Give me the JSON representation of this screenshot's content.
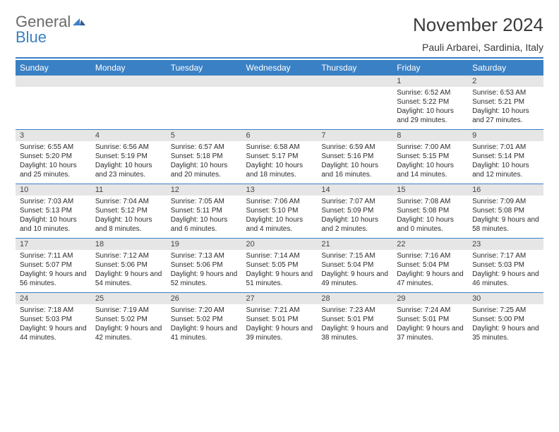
{
  "brand": {
    "part1": "General",
    "part2": "Blue"
  },
  "header": {
    "title": "November 2024",
    "location": "Pauli Arbarei, Sardinia, Italy"
  },
  "colors": {
    "accent": "#3a80c4",
    "header_bg": "#3a80c4",
    "header_text": "#ffffff",
    "daynum_bg": "#e6e6e6",
    "body_text": "#2b2b2b",
    "page_bg": "#ffffff"
  },
  "typography": {
    "title_fontsize": 26,
    "location_fontsize": 14,
    "header_cell_fontsize": 12,
    "daynum_fontsize": 11,
    "body_fontsize": 10
  },
  "weekdays": [
    "Sunday",
    "Monday",
    "Tuesday",
    "Wednesday",
    "Thursday",
    "Friday",
    "Saturday"
  ],
  "blanks_before": 5,
  "days": [
    {
      "n": 1,
      "sunrise": "6:52 AM",
      "sunset": "5:22 PM",
      "day_h": 10,
      "day_m": 29
    },
    {
      "n": 2,
      "sunrise": "6:53 AM",
      "sunset": "5:21 PM",
      "day_h": 10,
      "day_m": 27
    },
    {
      "n": 3,
      "sunrise": "6:55 AM",
      "sunset": "5:20 PM",
      "day_h": 10,
      "day_m": 25
    },
    {
      "n": 4,
      "sunrise": "6:56 AM",
      "sunset": "5:19 PM",
      "day_h": 10,
      "day_m": 23
    },
    {
      "n": 5,
      "sunrise": "6:57 AM",
      "sunset": "5:18 PM",
      "day_h": 10,
      "day_m": 20
    },
    {
      "n": 6,
      "sunrise": "6:58 AM",
      "sunset": "5:17 PM",
      "day_h": 10,
      "day_m": 18
    },
    {
      "n": 7,
      "sunrise": "6:59 AM",
      "sunset": "5:16 PM",
      "day_h": 10,
      "day_m": 16
    },
    {
      "n": 8,
      "sunrise": "7:00 AM",
      "sunset": "5:15 PM",
      "day_h": 10,
      "day_m": 14
    },
    {
      "n": 9,
      "sunrise": "7:01 AM",
      "sunset": "5:14 PM",
      "day_h": 10,
      "day_m": 12
    },
    {
      "n": 10,
      "sunrise": "7:03 AM",
      "sunset": "5:13 PM",
      "day_h": 10,
      "day_m": 10
    },
    {
      "n": 11,
      "sunrise": "7:04 AM",
      "sunset": "5:12 PM",
      "day_h": 10,
      "day_m": 8
    },
    {
      "n": 12,
      "sunrise": "7:05 AM",
      "sunset": "5:11 PM",
      "day_h": 10,
      "day_m": 6
    },
    {
      "n": 13,
      "sunrise": "7:06 AM",
      "sunset": "5:10 PM",
      "day_h": 10,
      "day_m": 4
    },
    {
      "n": 14,
      "sunrise": "7:07 AM",
      "sunset": "5:09 PM",
      "day_h": 10,
      "day_m": 2
    },
    {
      "n": 15,
      "sunrise": "7:08 AM",
      "sunset": "5:08 PM",
      "day_h": 10,
      "day_m": 0
    },
    {
      "n": 16,
      "sunrise": "7:09 AM",
      "sunset": "5:08 PM",
      "day_h": 9,
      "day_m": 58
    },
    {
      "n": 17,
      "sunrise": "7:11 AM",
      "sunset": "5:07 PM",
      "day_h": 9,
      "day_m": 56
    },
    {
      "n": 18,
      "sunrise": "7:12 AM",
      "sunset": "5:06 PM",
      "day_h": 9,
      "day_m": 54
    },
    {
      "n": 19,
      "sunrise": "7:13 AM",
      "sunset": "5:06 PM",
      "day_h": 9,
      "day_m": 52
    },
    {
      "n": 20,
      "sunrise": "7:14 AM",
      "sunset": "5:05 PM",
      "day_h": 9,
      "day_m": 51
    },
    {
      "n": 21,
      "sunrise": "7:15 AM",
      "sunset": "5:04 PM",
      "day_h": 9,
      "day_m": 49
    },
    {
      "n": 22,
      "sunrise": "7:16 AM",
      "sunset": "5:04 PM",
      "day_h": 9,
      "day_m": 47
    },
    {
      "n": 23,
      "sunrise": "7:17 AM",
      "sunset": "5:03 PM",
      "day_h": 9,
      "day_m": 46
    },
    {
      "n": 24,
      "sunrise": "7:18 AM",
      "sunset": "5:03 PM",
      "day_h": 9,
      "day_m": 44
    },
    {
      "n": 25,
      "sunrise": "7:19 AM",
      "sunset": "5:02 PM",
      "day_h": 9,
      "day_m": 42
    },
    {
      "n": 26,
      "sunrise": "7:20 AM",
      "sunset": "5:02 PM",
      "day_h": 9,
      "day_m": 41
    },
    {
      "n": 27,
      "sunrise": "7:21 AM",
      "sunset": "5:01 PM",
      "day_h": 9,
      "day_m": 39
    },
    {
      "n": 28,
      "sunrise": "7:23 AM",
      "sunset": "5:01 PM",
      "day_h": 9,
      "day_m": 38
    },
    {
      "n": 29,
      "sunrise": "7:24 AM",
      "sunset": "5:01 PM",
      "day_h": 9,
      "day_m": 37
    },
    {
      "n": 30,
      "sunrise": "7:25 AM",
      "sunset": "5:00 PM",
      "day_h": 9,
      "day_m": 35
    }
  ],
  "labels": {
    "sunrise_prefix": "Sunrise: ",
    "sunset_prefix": "Sunset: ",
    "daylight_prefix": "Daylight: ",
    "hours_word": " hours",
    "and_word": " and ",
    "minutes_word": " minutes."
  }
}
